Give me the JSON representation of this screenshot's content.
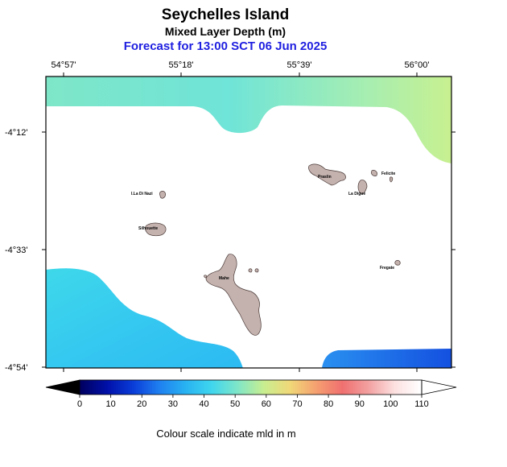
{
  "title": "Seychelles Island",
  "subtitle": "Mixed Layer Depth (m)",
  "forecast": "Forecast for  13:00 SCT 06 Jun 2025",
  "longitude_labels": [
    "54°57'",
    "55°18'",
    "55°39'",
    "56°00'"
  ],
  "latitude_labels": [
    "-4°12'",
    "-4°33'",
    "-4°54'"
  ],
  "island_labels": [
    "I.La Di Nazi",
    "Silhouette",
    "Praslin",
    "Felicite",
    "La Digue",
    "Mahe",
    "Fregate"
  ],
  "colorbar": {
    "ticks": [
      "0",
      "10",
      "20",
      "30",
      "40",
      "50",
      "60",
      "70",
      "80",
      "90",
      "100",
      "110"
    ],
    "colors": [
      "#000060",
      "#0010a8",
      "#0a3cd8",
      "#1f7ff0",
      "#28b2f2",
      "#3fd6ee",
      "#7fe6c8",
      "#c8ee90",
      "#f0d878",
      "#f5a070",
      "#f07070",
      "#f2a0a0",
      "#fde0e0",
      "#ffffff"
    ]
  },
  "caption": "Colour scale indicate mld in m"
}
